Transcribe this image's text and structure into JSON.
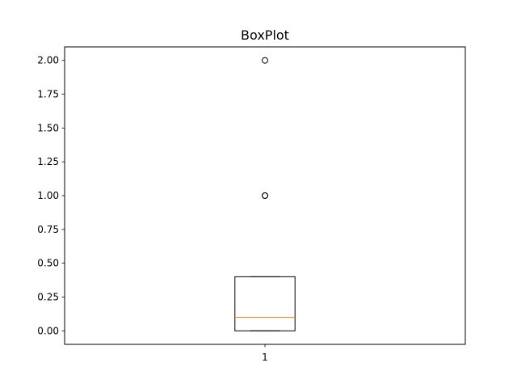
{
  "chart_data": {
    "type": "box",
    "title": "BoxPlot",
    "xlabel": "",
    "ylabel": "",
    "categories": [
      "1"
    ],
    "ylim": [
      -0.1,
      2.1
    ],
    "yticks": [
      0.0,
      0.25,
      0.5,
      0.75,
      1.0,
      1.25,
      1.5,
      1.75,
      2.0
    ],
    "ytick_labels": [
      "0.00",
      "0.25",
      "0.50",
      "0.75",
      "1.00",
      "1.25",
      "1.50",
      "1.75",
      "2.00"
    ],
    "grid": false,
    "boxes": [
      {
        "category": "1",
        "whisker_low": 0.0,
        "q1": 0.0,
        "median": 0.1,
        "q3": 0.4,
        "whisker_high": 0.4,
        "outliers": [
          1.0,
          1.0,
          2.0
        ]
      }
    ],
    "colors": {
      "box": "#000000",
      "median": "#ff7f0e",
      "outlier": "#000000"
    }
  }
}
